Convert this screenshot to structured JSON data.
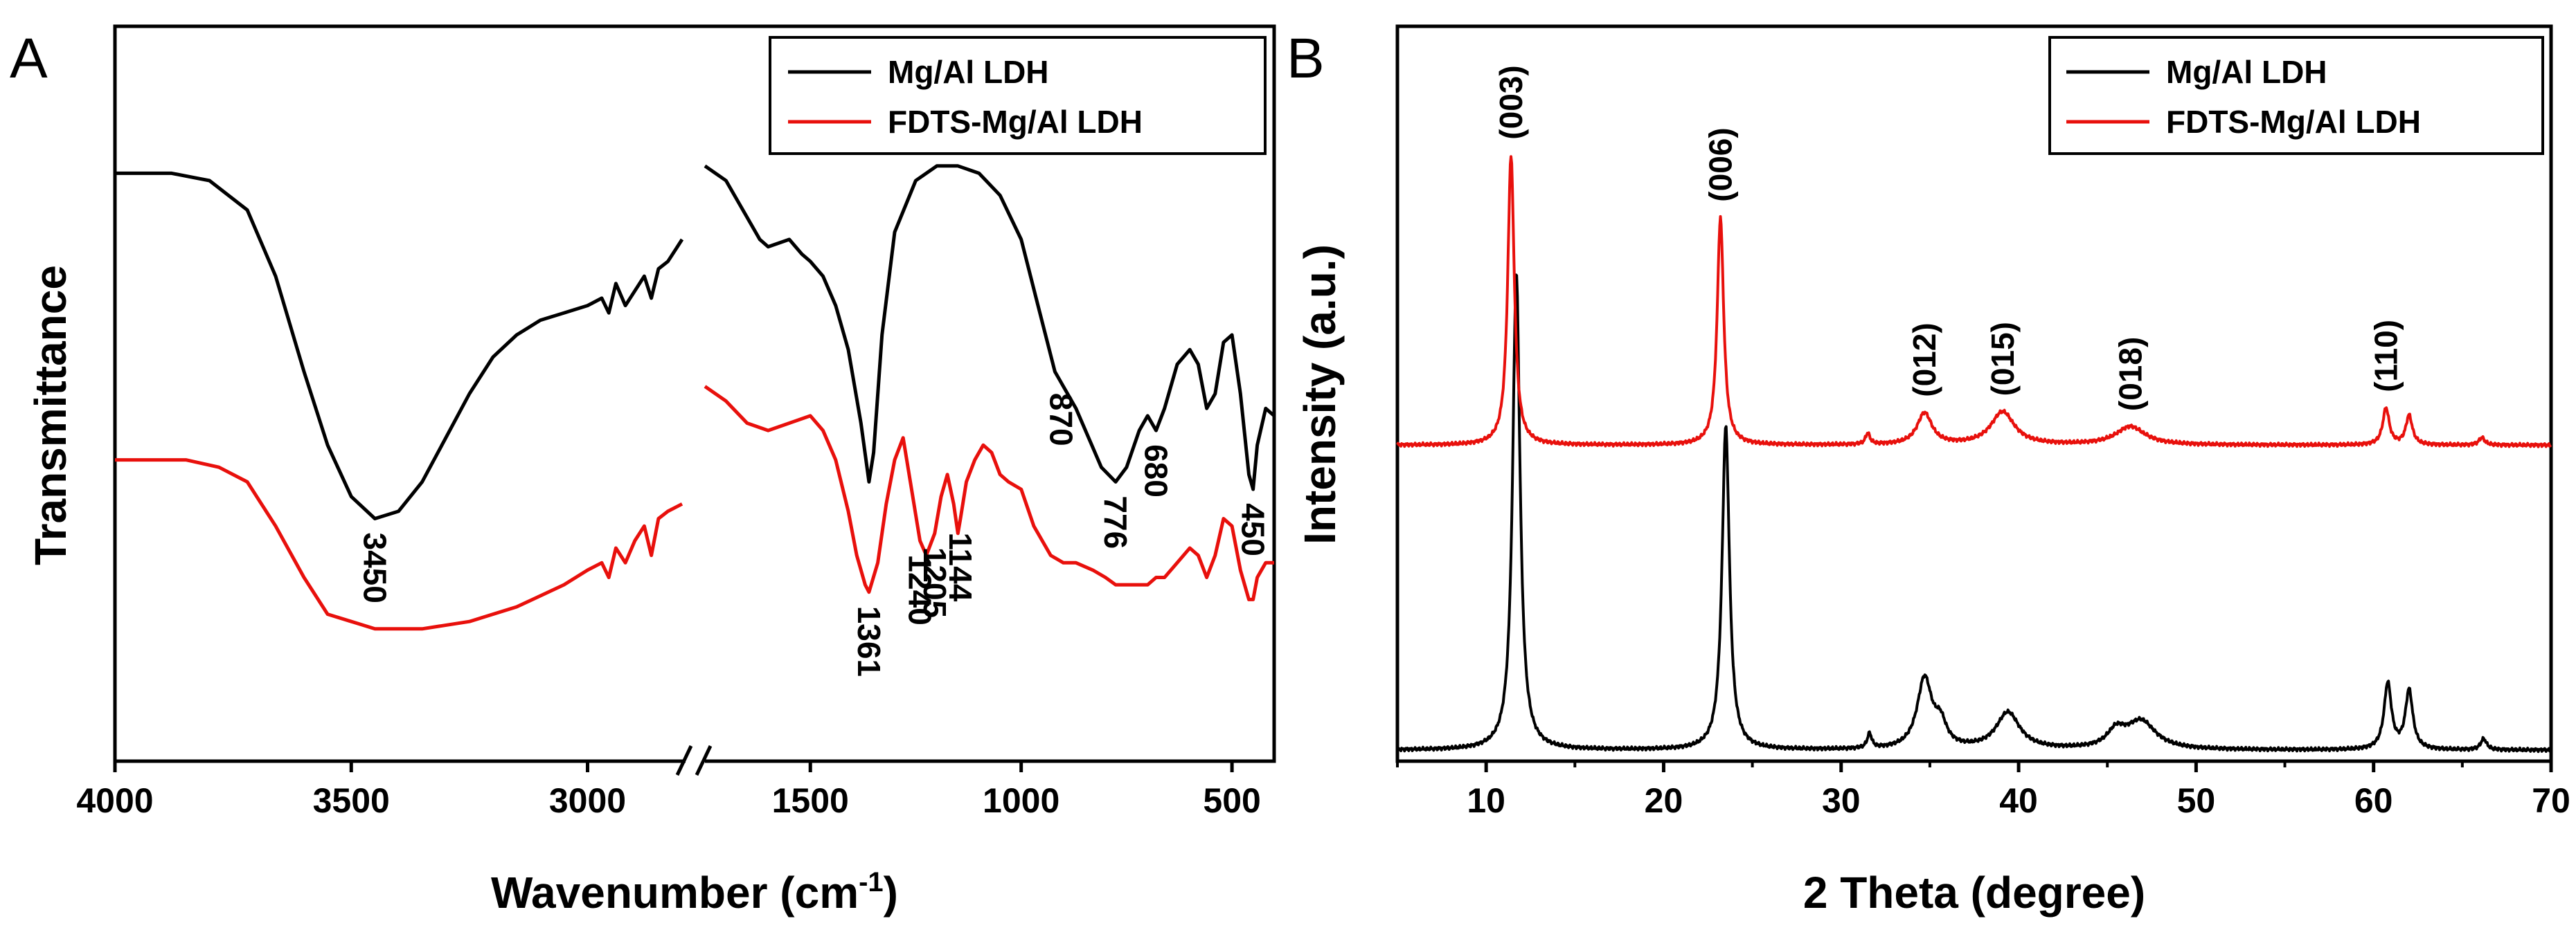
{
  "chart_data": [
    {
      "type": "line",
      "panel_label": "A",
      "title": "",
      "xlabel": "Wavenumber (cm",
      "xlabel_sup": "-1",
      "xlabel_end": ")",
      "ylabel": "Transmittance",
      "x_reversed": true,
      "x_break": [
        2800,
        1750
      ],
      "xlim": [
        4000,
        400
      ],
      "x_ticks": [
        {
          "value": 4000,
          "label": "4000"
        },
        {
          "value": 3500,
          "label": "3500"
        },
        {
          "value": 3000,
          "label": "3000"
        },
        {
          "value": 1500,
          "label": "1500"
        },
        {
          "value": 1000,
          "label": "1000"
        },
        {
          "value": 500,
          "label": "500"
        }
      ],
      "ylim": [
        0,
        1
      ],
      "grid": false,
      "legend_position": "top-right",
      "series": [
        {
          "name": "Mg/Al LDH",
          "color": "#000000",
          "points": [
            [
              4000,
              0.8
            ],
            [
              3880,
              0.8
            ],
            [
              3800,
              0.79
            ],
            [
              3720,
              0.75
            ],
            [
              3660,
              0.66
            ],
            [
              3600,
              0.53
            ],
            [
              3550,
              0.43
            ],
            [
              3500,
              0.36
            ],
            [
              3450,
              0.33
            ],
            [
              3400,
              0.34
            ],
            [
              3350,
              0.38
            ],
            [
              3300,
              0.44
            ],
            [
              3250,
              0.5
            ],
            [
              3200,
              0.55
            ],
            [
              3150,
              0.58
            ],
            [
              3100,
              0.6
            ],
            [
              3050,
              0.61
            ],
            [
              3000,
              0.62
            ],
            [
              2970,
              0.63
            ],
            [
              2955,
              0.61
            ],
            [
              2940,
              0.65
            ],
            [
              2920,
              0.62
            ],
            [
              2900,
              0.64
            ],
            [
              2880,
              0.66
            ],
            [
              2865,
              0.63
            ],
            [
              2850,
              0.67
            ],
            [
              2830,
              0.68
            ],
            [
              2810,
              0.7
            ],
            [
              2800,
              0.71
            ],
            [
              1750,
              0.81
            ],
            [
              1700,
              0.79
            ],
            [
              1650,
              0.74
            ],
            [
              1620,
              0.71
            ],
            [
              1600,
              0.7
            ],
            [
              1550,
              0.71
            ],
            [
              1520,
              0.69
            ],
            [
              1500,
              0.68
            ],
            [
              1470,
              0.66
            ],
            [
              1440,
              0.62
            ],
            [
              1410,
              0.56
            ],
            [
              1380,
              0.46
            ],
            [
              1361,
              0.38
            ],
            [
              1350,
              0.42
            ],
            [
              1330,
              0.58
            ],
            [
              1300,
              0.72
            ],
            [
              1250,
              0.79
            ],
            [
              1200,
              0.81
            ],
            [
              1150,
              0.81
            ],
            [
              1100,
              0.8
            ],
            [
              1050,
              0.77
            ],
            [
              1000,
              0.71
            ],
            [
              960,
              0.62
            ],
            [
              920,
              0.53
            ],
            [
              870,
              0.48
            ],
            [
              840,
              0.44
            ],
            [
              810,
              0.4
            ],
            [
              776,
              0.38
            ],
            [
              750,
              0.4
            ],
            [
              720,
              0.45
            ],
            [
              700,
              0.47
            ],
            [
              680,
              0.45
            ],
            [
              660,
              0.48
            ],
            [
              630,
              0.54
            ],
            [
              600,
              0.56
            ],
            [
              580,
              0.54
            ],
            [
              560,
              0.48
            ],
            [
              540,
              0.5
            ],
            [
              520,
              0.57
            ],
            [
              500,
              0.58
            ],
            [
              480,
              0.5
            ],
            [
              460,
              0.39
            ],
            [
              450,
              0.37
            ],
            [
              440,
              0.43
            ],
            [
              420,
              0.48
            ],
            [
              400,
              0.47
            ]
          ]
        },
        {
          "name": "FDTS-Mg/Al LDH",
          "color": "#e8100c",
          "points": [
            [
              4000,
              0.41
            ],
            [
              3850,
              0.41
            ],
            [
              3780,
              0.4
            ],
            [
              3720,
              0.38
            ],
            [
              3660,
              0.32
            ],
            [
              3600,
              0.25
            ],
            [
              3550,
              0.2
            ],
            [
              3500,
              0.19
            ],
            [
              3450,
              0.18
            ],
            [
              3350,
              0.18
            ],
            [
              3250,
              0.19
            ],
            [
              3150,
              0.21
            ],
            [
              3050,
              0.24
            ],
            [
              3000,
              0.26
            ],
            [
              2970,
              0.27
            ],
            [
              2955,
              0.25
            ],
            [
              2940,
              0.29
            ],
            [
              2920,
              0.27
            ],
            [
              2900,
              0.3
            ],
            [
              2880,
              0.32
            ],
            [
              2865,
              0.28
            ],
            [
              2850,
              0.33
            ],
            [
              2830,
              0.34
            ],
            [
              2800,
              0.35
            ],
            [
              1750,
              0.51
            ],
            [
              1700,
              0.49
            ],
            [
              1650,
              0.46
            ],
            [
              1600,
              0.45
            ],
            [
              1550,
              0.46
            ],
            [
              1500,
              0.47
            ],
            [
              1470,
              0.45
            ],
            [
              1440,
              0.41
            ],
            [
              1410,
              0.34
            ],
            [
              1390,
              0.28
            ],
            [
              1370,
              0.24
            ],
            [
              1361,
              0.23
            ],
            [
              1340,
              0.27
            ],
            [
              1320,
              0.35
            ],
            [
              1300,
              0.41
            ],
            [
              1280,
              0.44
            ],
            [
              1260,
              0.37
            ],
            [
              1240,
              0.3
            ],
            [
              1225,
              0.28
            ],
            [
              1205,
              0.31
            ],
            [
              1190,
              0.36
            ],
            [
              1175,
              0.39
            ],
            [
              1160,
              0.35
            ],
            [
              1150,
              0.31
            ],
            [
              1144,
              0.33
            ],
            [
              1130,
              0.38
            ],
            [
              1110,
              0.41
            ],
            [
              1090,
              0.43
            ],
            [
              1070,
              0.42
            ],
            [
              1050,
              0.39
            ],
            [
              1030,
              0.38
            ],
            [
              1000,
              0.37
            ],
            [
              970,
              0.32
            ],
            [
              930,
              0.28
            ],
            [
              900,
              0.27
            ],
            [
              870,
              0.27
            ],
            [
              830,
              0.26
            ],
            [
              800,
              0.25
            ],
            [
              776,
              0.24
            ],
            [
              750,
              0.24
            ],
            [
              720,
              0.24
            ],
            [
              700,
              0.24
            ],
            [
              680,
              0.25
            ],
            [
              660,
              0.25
            ],
            [
              630,
              0.27
            ],
            [
              600,
              0.29
            ],
            [
              580,
              0.28
            ],
            [
              560,
              0.25
            ],
            [
              540,
              0.28
            ],
            [
              520,
              0.33
            ],
            [
              500,
              0.32
            ],
            [
              480,
              0.26
            ],
            [
              460,
              0.22
            ],
            [
              450,
              0.22
            ],
            [
              440,
              0.25
            ],
            [
              420,
              0.27
            ],
            [
              400,
              0.27
            ]
          ]
        }
      ],
      "annotations": [
        {
          "text": "3450",
          "x": 3450,
          "y": 0.33,
          "series": 0
        },
        {
          "text": "870",
          "x": 905,
          "y": 0.52,
          "series": 0
        },
        {
          "text": "776",
          "x": 776,
          "y": 0.38,
          "series": 0
        },
        {
          "text": "680",
          "x": 680,
          "y": 0.45,
          "series": 0
        },
        {
          "text": "450",
          "x": 450,
          "y": 0.37,
          "series": 0
        },
        {
          "text": "1361",
          "x": 1361,
          "y": 0.23,
          "series": 1
        },
        {
          "text": "1240",
          "x": 1240,
          "y": 0.3,
          "series": 1
        },
        {
          "text": "1205",
          "x": 1205,
          "y": 0.31,
          "series": 1
        },
        {
          "text": "1144",
          "x": 1144,
          "y": 0.33,
          "series": 1
        }
      ]
    },
    {
      "type": "line",
      "panel_label": "B",
      "title": "",
      "xlabel": "2 Theta (degree)",
      "ylabel": "Intensity (a.u.)",
      "xlim": [
        5,
        70
      ],
      "x_ticks": [
        {
          "value": 10,
          "label": "10"
        },
        {
          "value": 20,
          "label": "20"
        },
        {
          "value": 30,
          "label": "30"
        },
        {
          "value": 40,
          "label": "40"
        },
        {
          "value": 50,
          "label": "50"
        },
        {
          "value": 60,
          "label": "60"
        },
        {
          "value": 70,
          "label": "70"
        }
      ],
      "ylim": [
        0,
        1
      ],
      "grid": false,
      "legend_position": "top-right",
      "series": [
        {
          "name": "Mg/Al LDH",
          "color": "#000000",
          "baseline": 0.015,
          "peaks": [
            {
              "x": 11.7,
              "h": 0.65,
              "w": 0.25
            },
            {
              "x": 23.5,
              "h": 0.44,
              "w": 0.25
            },
            {
              "x": 31.6,
              "h": 0.02,
              "w": 0.15
            },
            {
              "x": 34.7,
              "h": 0.095,
              "w": 0.5
            },
            {
              "x": 35.6,
              "h": 0.03,
              "w": 0.4
            },
            {
              "x": 39.4,
              "h": 0.05,
              "w": 0.8
            },
            {
              "x": 45.5,
              "h": 0.022,
              "w": 0.6
            },
            {
              "x": 46.9,
              "h": 0.038,
              "w": 1.0
            },
            {
              "x": 60.8,
              "h": 0.09,
              "w": 0.25
            },
            {
              "x": 62.0,
              "h": 0.08,
              "w": 0.25
            },
            {
              "x": 66.2,
              "h": 0.015,
              "w": 0.2
            }
          ]
        },
        {
          "name": "FDTS-Mg/Al LDH",
          "color": "#e8100c",
          "baseline": 0.43,
          "peaks": [
            {
              "x": 11.4,
              "h": 0.395,
              "w": 0.22
            },
            {
              "x": 23.2,
              "h": 0.31,
              "w": 0.22
            },
            {
              "x": 31.5,
              "h": 0.015,
              "w": 0.15
            },
            {
              "x": 34.7,
              "h": 0.043,
              "w": 0.5
            },
            {
              "x": 39.1,
              "h": 0.045,
              "w": 0.8
            },
            {
              "x": 46.3,
              "h": 0.025,
              "w": 1.0
            },
            {
              "x": 60.7,
              "h": 0.05,
              "w": 0.22
            },
            {
              "x": 62.0,
              "h": 0.04,
              "w": 0.22
            },
            {
              "x": 66.1,
              "h": 0.01,
              "w": 0.2
            }
          ]
        }
      ],
      "peak_labels": [
        {
          "text": "(003)",
          "x": 11.4
        },
        {
          "text": "(006)",
          "x": 23.2
        },
        {
          "text": "(012)",
          "x": 34.7
        },
        {
          "text": "(015)",
          "x": 39.1
        },
        {
          "text": "(018)",
          "x": 46.3
        },
        {
          "text": "(110)",
          "x": 60.7
        }
      ]
    }
  ]
}
